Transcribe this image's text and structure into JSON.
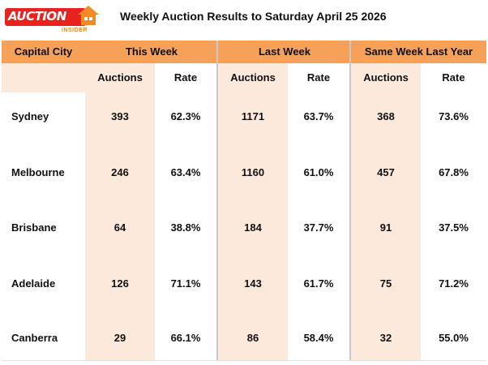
{
  "brand": {
    "logo_text": "AUCTION",
    "logo_sub": "INSIDER",
    "red": "#e8231e",
    "orange": "#f08a24"
  },
  "title": "Weekly Auction Results to Saturday April 25 2026",
  "colors": {
    "header_bg": "#f6a15a",
    "shade_bg": "#fde9dc",
    "divider": "#c9c9c9"
  },
  "table": {
    "headers": [
      "Capital City",
      "This Week",
      "Last Week",
      "Same Week Last Year"
    ],
    "subheaders": [
      "Auctions",
      "Rate",
      "Auctions",
      "Rate",
      "Auctions",
      "Rate"
    ],
    "rows": [
      {
        "city": "Sydney",
        "values": [
          "393",
          "62.3%",
          "1171",
          "63.7%",
          "368",
          "73.6%"
        ]
      },
      {
        "city": "Melbourne",
        "values": [
          "246",
          "63.4%",
          "1160",
          "61.0%",
          "457",
          "67.8%"
        ]
      },
      {
        "city": "Brisbane",
        "values": [
          "64",
          "38.8%",
          "184",
          "37.7%",
          "91",
          "37.5%"
        ]
      },
      {
        "city": "Adelaide",
        "values": [
          "126",
          "71.1%",
          "143",
          "61.7%",
          "75",
          "71.2%"
        ]
      },
      {
        "city": "Canberra",
        "values": [
          "29",
          "66.1%",
          "86",
          "58.4%",
          "32",
          "55.0%"
        ]
      }
    ]
  }
}
